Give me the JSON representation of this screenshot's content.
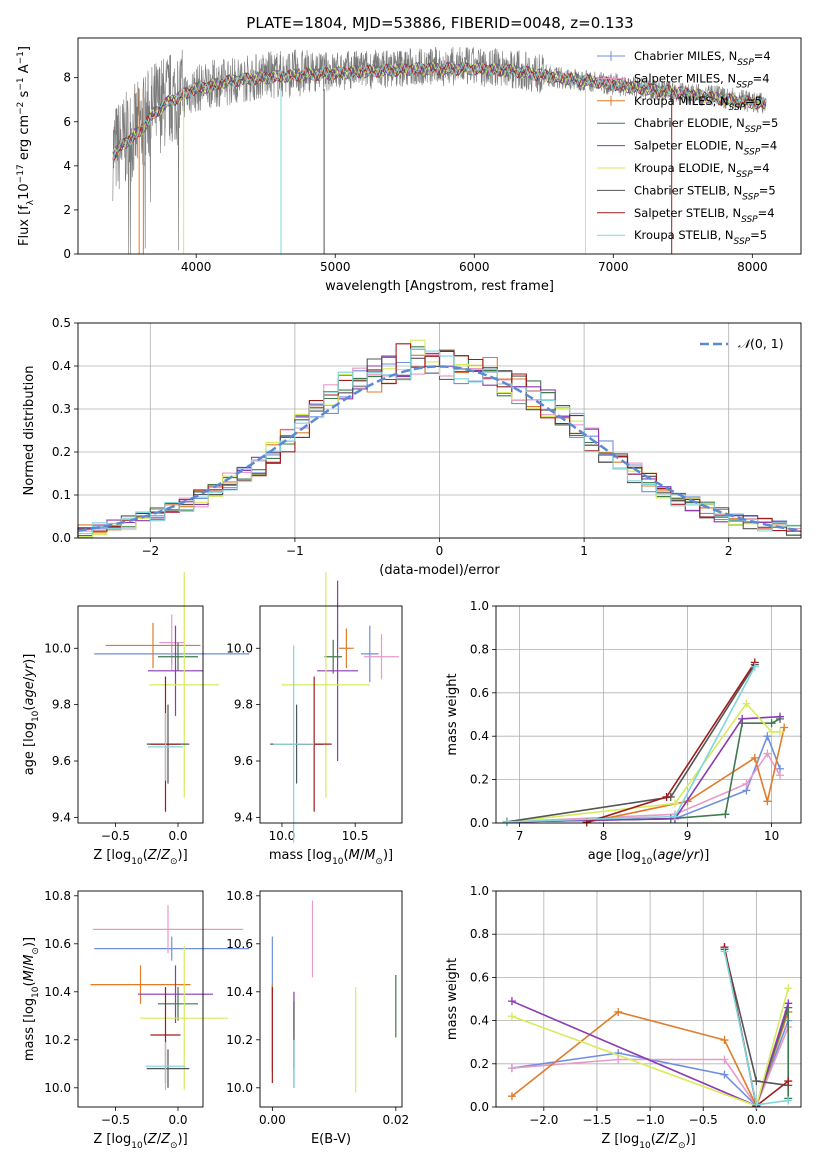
{
  "figure": {
    "title": "PLATE=1804, MJD=53886, FIBERID=0048, z=0.133"
  },
  "model_colors": {
    "Chabrier MILES": "#6f8fe0",
    "Salpeter MILES": "#e89ac8",
    "Kroupa MILES": "#e07b29",
    "Chabrier ELODIE": "#3f7a4c",
    "Salpeter ELODIE": "#8b3ab0",
    "Kroupa ELODIE": "#d6ec5c",
    "Chabrier STELIB": "#555555",
    "Salpeter STELIB": "#a01c1c",
    "Kroupa STELIB": "#7fd5dc"
  },
  "chart_data": [
    {
      "id": "spectrum",
      "type": "line",
      "xlabel": "wavelength [Angstrom, rest frame]",
      "ylabel": "Flux [f_λ10^-17 erg cm^-2 s^-1 A^-1]",
      "xlim": [
        3150,
        8350
      ],
      "ylim": [
        0,
        9.8
      ],
      "xticks": [
        4000,
        5000,
        6000,
        7000,
        8000
      ],
      "yticks": [
        0,
        2,
        4,
        6,
        8
      ],
      "legend_position": "top-right",
      "legend": [
        "Chabrier MILES, N_SSP=4",
        "Salpeter MILES, N_SSP=4",
        "Kroupa MILES, N_SSP=5",
        "Chabrier ELODIE, N_SSP=5",
        "Salpeter ELODIE, N_SSP=4",
        "Kroupa ELODIE, N_SSP=4",
        "Chabrier STELIB, N_SSP=5",
        "Salpeter STELIB, N_SSP=4",
        "Kroupa STELIB, N_SSP=5"
      ],
      "observed_flux_envelope": {
        "x": [
          3400,
          3500,
          3600,
          3700,
          3800,
          3900,
          4000,
          4100,
          4200,
          4300,
          4500,
          4700,
          5000,
          5300,
          5600,
          6000,
          6300,
          6600,
          6900,
          7200,
          7500,
          7800,
          8100
        ],
        "y": [
          4.6,
          5.2,
          5.8,
          6.6,
          7.0,
          7.2,
          7.5,
          7.7,
          7.8,
          7.9,
          8.1,
          8.2,
          8.3,
          8.4,
          8.5,
          8.5,
          8.4,
          8.0,
          7.8,
          7.5,
          7.3,
          7.1,
          6.8
        ]
      },
      "model_flux": {
        "x": [
          3400,
          3500,
          3600,
          3700,
          3800,
          3900,
          4000,
          4100,
          4200,
          4300,
          4500,
          4700,
          5000,
          5300,
          5600,
          6000,
          6300,
          6600,
          6900,
          7200,
          7500,
          7800,
          8100
        ],
        "y": [
          4.5,
          5.1,
          5.6,
          6.4,
          6.9,
          7.2,
          7.5,
          7.6,
          7.8,
          7.9,
          8.0,
          8.1,
          8.2,
          8.3,
          8.4,
          8.4,
          8.3,
          8.0,
          7.8,
          7.5,
          7.3,
          7.0,
          6.8
        ]
      }
    },
    {
      "id": "residuals",
      "type": "line",
      "xlabel": "(data-model)/error",
      "ylabel": "Normed distribution",
      "xlim": [
        -2.5,
        2.5
      ],
      "ylim": [
        0,
        0.5
      ],
      "xticks": [
        -2,
        -1,
        0,
        1,
        2
      ],
      "yticks": [
        0.0,
        0.1,
        0.2,
        0.3,
        0.4,
        0.5
      ],
      "grid": true,
      "legend": [
        "N(0,1)"
      ],
      "legend_position": "top-right",
      "bin_edges": [
        -2.5,
        -2.4,
        -2.3,
        -2.2,
        -2.1,
        -2.0,
        -1.9,
        -1.8,
        -1.7,
        -1.6,
        -1.5,
        -1.4,
        -1.3,
        -1.2,
        -1.1,
        -1.0,
        -0.9,
        -0.8,
        -0.7,
        -0.6,
        -0.5,
        -0.4,
        -0.3,
        -0.2,
        -0.1,
        0.0,
        0.1,
        0.2,
        0.3,
        0.4,
        0.5,
        0.6,
        0.7,
        0.8,
        0.9,
        1.0,
        1.1,
        1.2,
        1.3,
        1.4,
        1.5,
        1.6,
        1.7,
        1.8,
        1.9,
        2.0,
        2.1,
        2.2,
        2.3,
        2.4,
        2.5
      ],
      "histogram": [
        0.018,
        0.023,
        0.03,
        0.036,
        0.045,
        0.055,
        0.065,
        0.078,
        0.093,
        0.11,
        0.13,
        0.15,
        0.17,
        0.2,
        0.23,
        0.26,
        0.29,
        0.32,
        0.35,
        0.37,
        0.38,
        0.4,
        0.41,
        0.42,
        0.4,
        0.41,
        0.4,
        0.39,
        0.38,
        0.37,
        0.35,
        0.33,
        0.31,
        0.28,
        0.26,
        0.23,
        0.2,
        0.17,
        0.15,
        0.13,
        0.11,
        0.09,
        0.078,
        0.065,
        0.055,
        0.045,
        0.036,
        0.03,
        0.024,
        0.02
      ],
      "normal_curve": "N(0,1)"
    },
    {
      "id": "age_vs_Z",
      "type": "scatter",
      "xlabel": "Z [log10(Z/Z⊙)]",
      "ylabel": "age [log10(age/yr)]",
      "xlim": [
        -0.8,
        0.2
      ],
      "ylim": [
        9.38,
        10.15
      ],
      "xticks": [
        -0.5,
        0.0
      ],
      "yticks": [
        9.4,
        9.6,
        9.8,
        10.0
      ],
      "points": [
        {
          "model": "Chabrier MILES",
          "x": -0.05,
          "y": 9.98,
          "xerr": 0.62,
          "yerr": 0.04
        },
        {
          "model": "Salpeter MILES",
          "x": -0.05,
          "y": 10.02,
          "xerr": 0.1,
          "yerr": 0.1
        },
        {
          "model": "Kroupa MILES",
          "x": -0.2,
          "y": 10.01,
          "xerr": 0.38,
          "yerr": 0.08
        },
        {
          "model": "Chabrier ELODIE",
          "x": 0.0,
          "y": 9.97,
          "xerr": 0.16,
          "yerr": 0.05
        },
        {
          "model": "Salpeter ELODIE",
          "x": -0.02,
          "y": 9.92,
          "xerr": 0.22,
          "yerr": 0.16
        },
        {
          "model": "Kroupa ELODIE",
          "x": 0.05,
          "y": 9.87,
          "xerr": 0.28,
          "yerr": 0.4
        },
        {
          "model": "Chabrier STELIB",
          "x": -0.08,
          "y": 9.66,
          "xerr": 0.17,
          "yerr": 0.14
        },
        {
          "model": "Salpeter STELIB",
          "x": -0.1,
          "y": 9.66,
          "xerr": 0.12,
          "yerr": 0.24
        },
        {
          "model": "Kroupa STELIB",
          "x": -0.1,
          "y": 9.65,
          "xerr": 0.14,
          "yerr": 0.12
        }
      ]
    },
    {
      "id": "age_vs_mass",
      "type": "scatter",
      "xlabel": "mass [log10(M/M⊙)]",
      "ylabel": "",
      "xlim": [
        9.85,
        10.82
      ],
      "ylim": [
        9.38,
        10.15
      ],
      "xticks": [
        10.0,
        10.5
      ],
      "yticks": [
        9.4,
        9.6,
        9.8,
        10.0
      ],
      "points": [
        {
          "model": "Chabrier MILES",
          "x": 10.6,
          "y": 9.98,
          "xerr": 0.06,
          "yerr": 0.1
        },
        {
          "model": "Salpeter MILES",
          "x": 10.68,
          "y": 9.97,
          "xerr": 0.12,
          "yerr": 0.08
        },
        {
          "model": "Kroupa MILES",
          "x": 10.44,
          "y": 10.0,
          "xerr": 0.05,
          "yerr": 0.07
        },
        {
          "model": "Chabrier ELODIE",
          "x": 10.35,
          "y": 9.97,
          "xerr": 0.06,
          "yerr": 0.06
        },
        {
          "model": "Salpeter ELODIE",
          "x": 10.38,
          "y": 9.92,
          "xerr": 0.14,
          "yerr": 0.32
        },
        {
          "model": "Kroupa ELODIE",
          "x": 10.3,
          "y": 9.87,
          "xerr": 0.3,
          "yerr": 0.4
        },
        {
          "model": "Chabrier STELIB",
          "x": 10.1,
          "y": 9.66,
          "xerr": 0.18,
          "yerr": 0.14
        },
        {
          "model": "Salpeter STELIB",
          "x": 10.22,
          "y": 9.66,
          "xerr": 0.12,
          "yerr": 0.24
        },
        {
          "model": "Kroupa STELIB",
          "x": 10.08,
          "y": 9.66,
          "xerr": 0.14,
          "yerr": 0.35
        }
      ]
    },
    {
      "id": "weight_vs_age",
      "type": "line",
      "xlabel": "age [log10(age/yr)]",
      "ylabel": "mass weight",
      "xlim": [
        6.72,
        10.35
      ],
      "ylim": [
        0,
        1
      ],
      "xticks": [
        7,
        8,
        9,
        10
      ],
      "yticks": [
        0.0,
        0.2,
        0.4,
        0.6,
        0.8,
        1.0
      ],
      "grid": true,
      "series": [
        {
          "model": "Chabrier MILES",
          "x": [
            6.85,
            8.85,
            9.7,
            9.95,
            10.1
          ],
          "y": [
            0.005,
            0.02,
            0.15,
            0.4,
            0.25
          ]
        },
        {
          "model": "Salpeter MILES",
          "x": [
            6.85,
            8.85,
            9.7,
            9.95,
            10.1
          ],
          "y": [
            0.005,
            0.04,
            0.18,
            0.32,
            0.22
          ]
        },
        {
          "model": "Kroupa MILES",
          "x": [
            7.8,
            9.0,
            9.8,
            9.95,
            10.15
          ],
          "y": [
            0.003,
            0.1,
            0.3,
            0.1,
            0.44
          ]
        },
        {
          "model": "Chabrier ELODIE",
          "x": [
            6.85,
            8.8,
            9.45,
            9.65,
            10.0,
            10.1
          ],
          "y": [
            0.005,
            0.02,
            0.04,
            0.46,
            0.46,
            0.48
          ]
        },
        {
          "model": "Salpeter ELODIE",
          "x": [
            6.85,
            8.85,
            9.65,
            10.1
          ],
          "y": [
            0.005,
            0.02,
            0.48,
            0.49
          ]
        },
        {
          "model": "Kroupa ELODIE",
          "x": [
            6.85,
            8.85,
            9.7,
            10.0,
            10.1
          ],
          "y": [
            0.005,
            0.09,
            0.55,
            0.42,
            0.42
          ]
        },
        {
          "model": "Chabrier STELIB",
          "x": [
            6.85,
            8.8,
            9.8
          ],
          "y": [
            0.005,
            0.12,
            0.73
          ]
        },
        {
          "model": "Salpeter STELIB",
          "x": [
            7.8,
            8.75,
            9.8
          ],
          "y": [
            0.003,
            0.12,
            0.74
          ]
        },
        {
          "model": "Kroupa STELIB",
          "x": [
            6.85,
            8.85,
            9.8
          ],
          "y": [
            0.005,
            0.03,
            0.72
          ]
        }
      ]
    },
    {
      "id": "mass_vs_Z",
      "type": "scatter",
      "xlabel": "Z [log10(Z/Z⊙)]",
      "ylabel": "mass [log10(M/M⊙)]",
      "xlim": [
        -0.8,
        0.2
      ],
      "ylim": [
        9.92,
        10.82
      ],
      "xticks": [
        -0.5,
        0.0
      ],
      "yticks": [
        10.0,
        10.2,
        10.4,
        10.6,
        10.8
      ],
      "points": [
        {
          "model": "Chabrier MILES",
          "x": -0.05,
          "y": 10.58,
          "xerr": 0.62,
          "yerr": 0.05
        },
        {
          "model": "Salpeter MILES",
          "x": -0.08,
          "y": 10.66,
          "xerr": 0.6,
          "yerr": 0.1
        },
        {
          "model": "Kroupa MILES",
          "x": -0.3,
          "y": 10.43,
          "xerr": 0.4,
          "yerr": 0.08
        },
        {
          "model": "Chabrier ELODIE",
          "x": 0.0,
          "y": 10.35,
          "xerr": 0.16,
          "yerr": 0.07
        },
        {
          "model": "Salpeter ELODIE",
          "x": -0.02,
          "y": 10.39,
          "xerr": 0.3,
          "yerr": 0.12
        },
        {
          "model": "Kroupa ELODIE",
          "x": 0.05,
          "y": 10.29,
          "xerr": 0.35,
          "yerr": 0.3
        },
        {
          "model": "Chabrier STELIB",
          "x": -0.08,
          "y": 10.08,
          "xerr": 0.17,
          "yerr": 0.08
        },
        {
          "model": "Salpeter STELIB",
          "x": -0.1,
          "y": 10.22,
          "xerr": 0.12,
          "yerr": 0.2
        },
        {
          "model": "Kroupa STELIB",
          "x": -0.1,
          "y": 10.09,
          "xerr": 0.16,
          "yerr": 0.1
        }
      ]
    },
    {
      "id": "mass_vs_EBV",
      "type": "scatter",
      "xlabel": "E(B-V)",
      "ylabel": "",
      "xlim": [
        -0.002,
        0.021
      ],
      "ylim": [
        9.92,
        10.82
      ],
      "xticks": [
        0.0,
        0.02
      ],
      "yticks": [
        10.0,
        10.2,
        10.4,
        10.6,
        10.8
      ],
      "points": [
        {
          "model": "Chabrier MILES",
          "x": 0.0,
          "y": 10.5,
          "xerr": 0,
          "yerr": 0.13
        },
        {
          "model": "Salpeter MILES",
          "x": 0.0065,
          "y": 10.62,
          "xerr": 0,
          "yerr": 0.16
        },
        {
          "model": "Kroupa MILES",
          "x": 0.0,
          "y": 10.25,
          "xerr": 0,
          "yerr": 0.18
        },
        {
          "model": "Chabrier ELODIE",
          "x": 0.02,
          "y": 10.34,
          "xerr": 0,
          "yerr": 0.13
        },
        {
          "model": "Salpeter ELODIE",
          "x": 0.0035,
          "y": 10.2,
          "xerr": 0,
          "yerr": 0.2
        },
        {
          "model": "Kroupa ELODIE",
          "x": 0.0135,
          "y": 10.2,
          "xerr": 0,
          "yerr": 0.22
        },
        {
          "model": "Chabrier STELIB",
          "x": 0.0035,
          "y": 10.22,
          "xerr": 0,
          "yerr": 0.14
        },
        {
          "model": "Salpeter STELIB",
          "x": 0.0,
          "y": 10.22,
          "xerr": 0,
          "yerr": 0.2
        },
        {
          "model": "Kroupa STELIB",
          "x": 0.0035,
          "y": 10.1,
          "xerr": 0,
          "yerr": 0.1
        }
      ]
    },
    {
      "id": "weight_vs_Z",
      "type": "line",
      "xlabel": "Z [log10(Z/Z⊙)]",
      "ylabel": "mass weight",
      "xlim": [
        -2.45,
        0.42
      ],
      "ylim": [
        0,
        1
      ],
      "xticks": [
        -2.0,
        -1.5,
        -1.0,
        -0.5,
        0.0
      ],
      "yticks": [
        0.0,
        0.2,
        0.4,
        0.6,
        0.8,
        1.0
      ],
      "grid": true,
      "series": [
        {
          "model": "Chabrier MILES",
          "x": [
            -2.3,
            -1.3,
            -0.3,
            0.0,
            0.3
          ],
          "y": [
            0.18,
            0.25,
            0.15,
            0.005,
            0.4
          ]
        },
        {
          "model": "Salpeter MILES",
          "x": [
            -2.3,
            -1.3,
            -0.3,
            0.0,
            0.3
          ],
          "y": [
            0.18,
            0.22,
            0.22,
            0.005,
            0.37
          ]
        },
        {
          "model": "Kroupa MILES",
          "x": [
            -2.3,
            -1.3,
            -0.3,
            0.0,
            0.3
          ],
          "y": [
            0.05,
            0.44,
            0.31,
            0.005,
            0.44
          ]
        },
        {
          "model": "Chabrier ELODIE",
          "x": [
            -0.3,
            0.0,
            0.3,
            0.3
          ],
          "y": [
            0.74,
            0.005,
            0.46,
            0.04
          ]
        },
        {
          "model": "Salpeter ELODIE",
          "x": [
            -2.3,
            0.0,
            0.3
          ],
          "y": [
            0.49,
            0.005,
            0.48
          ]
        },
        {
          "model": "Kroupa ELODIE",
          "x": [
            -2.3,
            0.0,
            0.3
          ],
          "y": [
            0.42,
            0.005,
            0.55
          ]
        },
        {
          "model": "Chabrier STELIB",
          "x": [
            -0.3,
            0.0,
            0.3
          ],
          "y": [
            0.73,
            0.12,
            0.1
          ]
        },
        {
          "model": "Salpeter STELIB",
          "x": [
            -0.3,
            0.0,
            0.3
          ],
          "y": [
            0.74,
            0.005,
            0.12
          ]
        },
        {
          "model": "Kroupa STELIB",
          "x": [
            -0.3,
            0.0,
            0.3
          ],
          "y": [
            0.72,
            0.01,
            0.03
          ]
        }
      ]
    }
  ]
}
